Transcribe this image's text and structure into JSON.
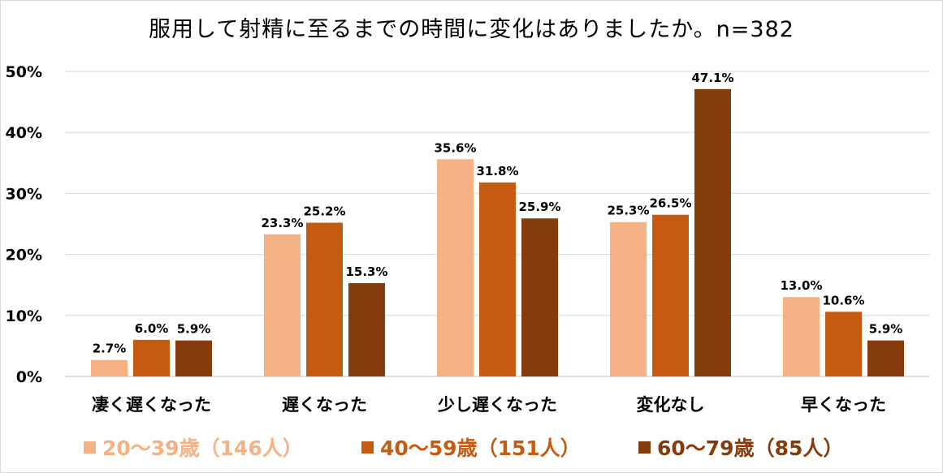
{
  "chart_data": {
    "type": "bar",
    "title": "服用して射精に至るまでの時間に変化はありましたか。n=382",
    "categories": [
      "凄く遅くなった",
      "遅くなった",
      "少し遅くなった",
      "変化なし",
      "早くなった"
    ],
    "series": [
      {
        "name": "20〜39歳（146人）",
        "color": "#F4B183",
        "values": [
          2.7,
          23.3,
          35.6,
          25.3,
          13.0
        ]
      },
      {
        "name": "40〜59歳（151人）",
        "color": "#C55A11",
        "values": [
          6.0,
          25.2,
          31.8,
          26.5,
          10.6
        ]
      },
      {
        "name": "60〜79歳（85人）",
        "color": "#843C0C",
        "values": [
          5.9,
          15.3,
          25.9,
          47.1,
          5.9
        ]
      }
    ],
    "data_labels": [
      [
        "2.7%",
        "23.3%",
        "35.6%",
        "25.3%",
        "13.0%"
      ],
      [
        "6.0%",
        "25.2%",
        "31.8%",
        "26.5%",
        "10.6%"
      ],
      [
        "5.9%",
        "15.3%",
        "25.9%",
        "47.1%",
        "5.9%"
      ]
    ],
    "yticks": [
      "0%",
      "10%",
      "20%",
      "30%",
      "40%",
      "50%"
    ],
    "ylim": [
      0,
      50
    ],
    "xlabel": "",
    "ylabel": "",
    "grid": true,
    "legend_position": "bottom"
  }
}
